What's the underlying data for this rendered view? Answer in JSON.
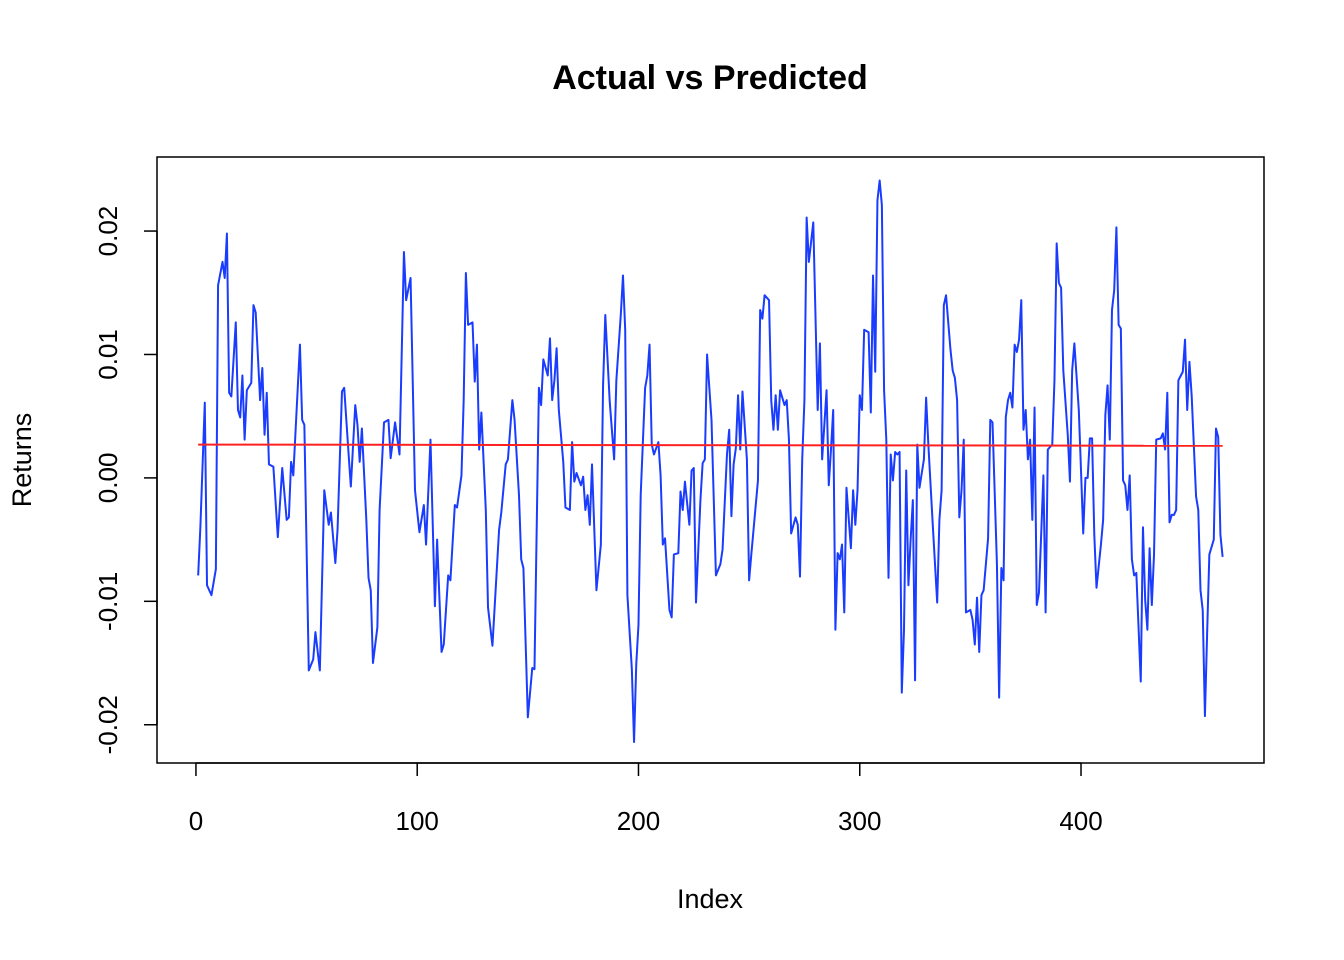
{
  "chart_data": {
    "type": "line",
    "title": "Actual vs Predicted",
    "x_label": "Index",
    "y_label": "Returns",
    "xlim": [
      -17.6,
      482.7
    ],
    "ylim": [
      -0.0231,
      0.026
    ],
    "xticks": [
      0,
      100,
      200,
      300,
      400
    ],
    "yticks": [
      -0.02,
      -0.01,
      {
        "value": 0,
        "label": "0.00"
      },
      0.01,
      0.02
    ],
    "grid": false,
    "series": [
      {
        "color": "#1a3cff",
        "x": [
          1,
          2,
          4,
          5,
          7,
          9,
          10,
          12,
          13,
          14,
          15,
          16,
          18,
          19,
          20,
          21,
          22,
          23,
          25,
          26,
          27,
          29,
          30,
          31,
          32,
          33,
          35,
          37,
          39,
          41,
          42,
          43,
          44,
          47,
          48,
          49,
          51,
          53,
          54,
          56,
          58,
          60,
          61,
          63,
          64,
          66,
          67,
          69,
          70,
          72,
          73,
          74,
          75,
          77,
          78,
          79,
          80,
          82,
          83,
          85,
          87,
          88,
          90,
          92,
          94,
          95,
          97,
          99,
          101,
          103,
          104,
          106,
          108,
          109,
          111,
          112,
          114,
          115,
          117,
          118,
          120,
          121,
          122,
          123,
          125,
          126,
          127,
          128,
          129,
          131,
          132,
          134,
          137,
          138,
          140,
          141,
          143,
          144,
          146,
          147,
          148,
          150,
          152,
          153,
          155,
          156,
          157,
          159,
          160,
          161,
          162,
          163,
          164,
          166,
          167,
          169,
          170,
          171,
          172,
          174,
          175,
          176,
          177,
          178,
          179,
          181,
          183,
          184,
          185,
          187,
          189,
          190,
          192,
          193,
          194,
          195,
          197,
          198,
          199,
          200,
          201,
          203,
          204,
          205,
          206,
          207,
          209,
          210,
          211,
          212,
          214,
          215,
          216,
          218,
          219,
          220,
          221,
          223,
          224,
          225,
          226,
          228,
          229,
          230,
          231,
          233,
          235,
          237,
          238,
          240,
          241,
          242,
          243,
          244,
          245,
          246,
          247,
          249,
          250,
          251,
          254,
          255,
          256,
          257,
          259,
          260,
          261,
          262,
          263,
          264,
          266,
          267,
          268,
          269,
          271,
          272,
          273,
          274,
          275,
          276,
          277,
          279,
          281,
          282,
          283,
          285,
          286,
          287,
          288,
          289,
          290,
          291,
          292,
          293,
          294,
          296,
          297,
          298,
          299,
          300,
          301,
          302,
          304,
          305,
          306,
          307,
          308,
          309,
          310,
          311,
          312,
          313,
          314,
          315,
          316,
          317,
          318,
          319,
          320,
          321,
          322,
          323,
          324,
          325,
          326,
          327,
          329,
          330,
          331,
          333,
          335,
          336,
          337,
          338,
          339,
          341,
          342,
          343,
          344,
          345,
          346,
          347,
          348,
          350,
          351,
          352,
          353,
          354,
          355,
          356,
          358,
          359,
          360,
          362,
          363,
          364,
          365,
          366,
          367,
          368,
          369,
          370,
          371,
          372,
          373,
          374,
          375,
          376,
          377,
          378,
          379,
          380,
          381,
          383,
          384,
          385,
          387,
          388,
          389,
          390,
          391,
          392,
          394,
          395,
          396,
          397,
          399,
          400,
          401,
          402,
          403,
          404,
          405,
          406,
          407,
          409,
          410,
          411,
          412,
          413,
          414,
          415,
          416,
          417,
          418,
          419,
          420,
          421,
          422,
          423,
          424,
          425,
          427,
          428,
          429,
          430,
          431,
          432,
          433,
          434,
          436,
          437,
          438,
          439,
          440,
          441,
          442,
          443,
          444,
          446,
          447,
          448,
          449,
          450,
          452,
          453,
          454,
          455,
          456,
          457,
          458,
          460,
          461,
          462,
          463,
          464
        ],
        "values": [
          -0.0079,
          -0.004,
          0.0061,
          -0.0087,
          -0.0095,
          -0.0074,
          0.0156,
          0.0175,
          0.0162,
          0.0198,
          0.0069,
          0.0066,
          0.0126,
          0.0055,
          0.0049,
          0.0083,
          0.0031,
          0.0071,
          0.0077,
          0.014,
          0.0134,
          0.0063,
          0.0089,
          0.0035,
          0.0069,
          0.0011,
          0.0009,
          -0.0048,
          0.0008,
          -0.0034,
          -0.0032,
          0.0013,
          0.0002,
          0.0108,
          0.0047,
          0.0043,
          -0.0156,
          -0.0147,
          -0.0125,
          -0.0156,
          -0.001,
          -0.0038,
          -0.0028,
          -0.0069,
          -0.0042,
          0.007,
          0.0073,
          0.0019,
          -0.0007,
          0.0059,
          0.0043,
          0.0013,
          0.004,
          -0.0034,
          -0.0081,
          -0.0091,
          -0.015,
          -0.0121,
          -0.0026,
          0.0045,
          0.0047,
          0.0016,
          0.0045,
          0.0019,
          0.0183,
          0.0144,
          0.0162,
          -0.001,
          -0.0044,
          -0.0022,
          -0.0054,
          0.0031,
          -0.0104,
          -0.005,
          -0.0141,
          -0.0135,
          -0.0079,
          -0.0083,
          -0.0022,
          -0.0024,
          0.0002,
          0.0063,
          0.0166,
          0.0124,
          0.0126,
          0.0078,
          0.0108,
          0.0023,
          0.0053,
          -0.0026,
          -0.0105,
          -0.0136,
          -0.0042,
          -0.0028,
          0.0011,
          0.0015,
          0.0063,
          0.0047,
          -0.0014,
          -0.0066,
          -0.0073,
          -0.0194,
          -0.0154,
          -0.0155,
          0.0073,
          0.0059,
          0.0096,
          0.0083,
          0.0113,
          0.0063,
          0.0079,
          0.0105,
          0.0055,
          0.0013,
          -0.0024,
          -0.0026,
          0.0029,
          -0.0003,
          0.0004,
          -0.0006,
          0.0001,
          -0.0026,
          -0.0014,
          -0.0038,
          0.0011,
          -0.0091,
          -0.0054,
          0.0075,
          0.0132,
          0.0062,
          0.0015,
          0.0079,
          0.0132,
          0.0164,
          0.012,
          -0.0095,
          -0.0155,
          -0.0214,
          -0.0151,
          -0.0119,
          -0.0014,
          0.0073,
          0.0083,
          0.0108,
          0.0027,
          0.0019,
          0.0029,
          0.0002,
          -0.0054,
          -0.0049,
          -0.0107,
          -0.0113,
          -0.0062,
          -0.0061,
          -0.0011,
          -0.0026,
          -0.0003,
          -0.0038,
          0.0006,
          0.0008,
          -0.0101,
          -0.0018,
          0.0012,
          0.0015,
          0.01,
          0.0047,
          -0.0079,
          -0.007,
          -0.0058,
          0.0019,
          0.0039,
          -0.0031,
          0.0011,
          0.0024,
          0.0067,
          0.0023,
          0.007,
          0.0015,
          -0.0083,
          -0.0062,
          -0.0002,
          0.0136,
          0.0129,
          0.0148,
          0.0144,
          0.0063,
          0.0039,
          0.0067,
          0.0039,
          0.0071,
          0.0059,
          0.0063,
          0.0031,
          -0.0045,
          -0.0032,
          -0.0038,
          -0.008,
          0.0015,
          0.0063,
          0.0211,
          0.0175,
          0.0207,
          0.0055,
          0.0109,
          0.0015,
          0.0071,
          -0.0006,
          0.0023,
          0.0055,
          -0.0123,
          -0.0061,
          -0.0066,
          -0.0054,
          -0.0109,
          -0.0008,
          -0.0057,
          -0.001,
          -0.0038,
          -0.001,
          0.0067,
          0.0055,
          0.012,
          0.0118,
          0.0053,
          0.0164,
          0.0086,
          0.0225,
          0.0241,
          0.0221,
          0.0071,
          0.0031,
          -0.0081,
          0.0019,
          -0.0002,
          0.0021,
          0.0019,
          0.0021,
          -0.0174,
          -0.0123,
          0.0006,
          -0.0087,
          -0.005,
          -0.0018,
          -0.0164,
          0.0027,
          -0.0008,
          0.0015,
          0.0065,
          0.0027,
          -0.0038,
          -0.0101,
          -0.0034,
          -0.001,
          0.014,
          0.0148,
          0.0104,
          0.0087,
          0.0081,
          0.0063,
          -0.0032,
          -0.001,
          0.0031,
          -0.0109,
          -0.0107,
          -0.0115,
          -0.0135,
          -0.0097,
          -0.0141,
          -0.0095,
          -0.0091,
          -0.0049,
          0.0047,
          0.0045,
          -0.007,
          -0.0178,
          -0.0073,
          -0.0083,
          0.0049,
          0.0063,
          0.0069,
          0.0057,
          0.0108,
          0.0102,
          0.0112,
          0.0144,
          0.0039,
          0.0055,
          0.0015,
          0.0031,
          -0.0034,
          0.0057,
          -0.0103,
          -0.0093,
          0.0002,
          -0.0109,
          0.0023,
          0.0027,
          0.0079,
          0.019,
          0.0158,
          0.0154,
          0.0087,
          0.0035,
          -0.0003,
          0.0087,
          0.0109,
          0.0055,
          0.0006,
          -0.0045,
          0,
          0,
          0.0032,
          0.0032,
          -0.0046,
          -0.0089,
          -0.0054,
          -0.0034,
          0.0051,
          0.0075,
          0.0031,
          0.0136,
          0.0152,
          0.0203,
          0.0124,
          0.0121,
          -0.0002,
          -0.0006,
          -0.0026,
          0.0002,
          -0.0066,
          -0.0079,
          -0.0077,
          -0.0165,
          -0.004,
          -0.0099,
          -0.0123,
          -0.0057,
          -0.0103,
          -0.0062,
          0.0031,
          0.0032,
          0.0036,
          0.0023,
          0.0069,
          -0.0036,
          -0.003,
          -0.003,
          -0.0026,
          0.0079,
          0.0086,
          0.0112,
          0.0055,
          0.0094,
          0.0067,
          -0.0015,
          -0.0026,
          -0.0091,
          -0.0107,
          -0.0193,
          -0.0126,
          -0.0062,
          -0.005,
          0.004,
          0.0033,
          -0.0046,
          -0.0064
        ]
      },
      {
        "color": "#ff2020",
        "x": [
          1,
          464
        ],
        "values": [
          0.0027,
          0.0026
        ]
      }
    ]
  }
}
